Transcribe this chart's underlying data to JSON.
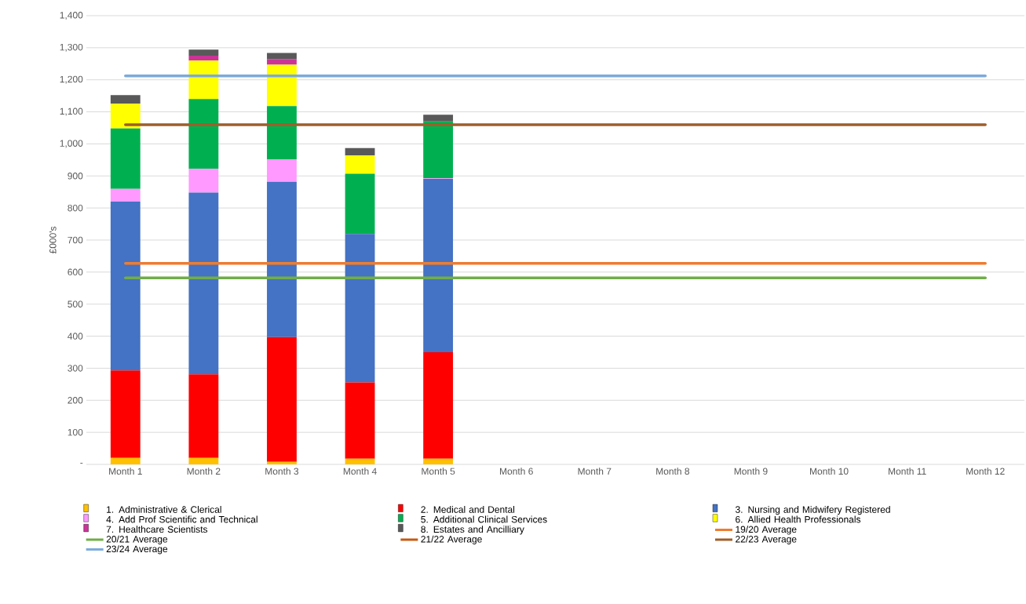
{
  "chart_data": {
    "type": "bar",
    "stacked": true,
    "ylabel": "£000's",
    "categories": [
      "Month 1",
      "Month 2",
      "Month 3",
      "Month 4",
      "Month 5",
      "Month 6",
      "Month 7",
      "Month 8",
      "Month 9",
      "Month 10",
      "Month 11",
      "Month 12"
    ],
    "ylim": [
      0,
      1400
    ],
    "yticks": [
      {
        "value": 0,
        "label": "-"
      },
      {
        "value": 100,
        "label": "100"
      },
      {
        "value": 200,
        "label": "200"
      },
      {
        "value": 300,
        "label": "300"
      },
      {
        "value": 400,
        "label": "400"
      },
      {
        "value": 500,
        "label": "500"
      },
      {
        "value": 600,
        "label": "600"
      },
      {
        "value": 700,
        "label": "700"
      },
      {
        "value": 800,
        "label": "800"
      },
      {
        "value": 900,
        "label": "900"
      },
      {
        "value": 1000,
        "label": "1,000"
      },
      {
        "value": 1100,
        "label": "1,100"
      },
      {
        "value": 1200,
        "label": "1,200"
      },
      {
        "value": 1300,
        "label": "1,300"
      },
      {
        "value": 1400,
        "label": "1,400"
      }
    ],
    "grid": "y",
    "legend": "bottom",
    "series": [
      {
        "name": "1. Administrative & Clerical",
        "color": "#ffc000",
        "values": [
          20,
          20,
          8,
          18,
          18,
          null,
          null,
          null,
          null,
          null,
          null,
          null
        ]
      },
      {
        "name": "2. Medical and Dental",
        "color": "#ff0000",
        "values": [
          273,
          261,
          389,
          238,
          332,
          null,
          null,
          null,
          null,
          null,
          null,
          null
        ]
      },
      {
        "name": "3. Nursing and Midwifery Registered",
        "color": "#4472c4",
        "values": [
          527,
          567,
          485,
          463,
          541,
          null,
          null,
          null,
          null,
          null,
          null,
          null
        ]
      },
      {
        "name": "4. Add Prof Scientific and Technical",
        "color": "#ff99ff",
        "values": [
          40,
          74,
          70,
          0,
          2,
          null,
          null,
          null,
          null,
          null,
          null,
          null
        ]
      },
      {
        "name": "5. Additional Clinical Services",
        "color": "#00b050",
        "values": [
          188,
          218,
          166,
          188,
          177,
          null,
          null,
          null,
          null,
          null,
          null,
          null
        ]
      },
      {
        "name": "6. Allied Health Professionals",
        "color": "#ffff00",
        "values": [
          77,
          120,
          129,
          57,
          0,
          null,
          null,
          null,
          null,
          null,
          null,
          null
        ]
      },
      {
        "name": "7. Healthcare Scientists",
        "color": "#cc3399",
        "values": [
          0,
          15,
          18,
          0,
          0,
          null,
          null,
          null,
          null,
          null,
          null,
          null
        ]
      },
      {
        "name": "8. Estates and Ancilliary",
        "color": "#595959",
        "values": [
          27,
          19,
          19,
          23,
          21,
          null,
          null,
          null,
          null,
          null,
          null,
          null
        ]
      },
      {
        "name": "19/20 Average",
        "type": "line",
        "color": "#ed7d31",
        "values": [
          627,
          627,
          627,
          627,
          627,
          627,
          627,
          627,
          627,
          627,
          627,
          627
        ]
      },
      {
        "name": "20/21 Average",
        "type": "line",
        "color": "#70ad47",
        "values": [
          582,
          582,
          582,
          582,
          582,
          582,
          582,
          582,
          582,
          582,
          582,
          582
        ]
      },
      {
        "name": "21/22 Average",
        "type": "line",
        "color": "#c55a11",
        "values": [
          null,
          null,
          null,
          null,
          null,
          null,
          null,
          null,
          null,
          null,
          null,
          null
        ]
      },
      {
        "name": "22/23 Average",
        "type": "line",
        "color": "#9e5e2b",
        "values": [
          1060,
          1060,
          1060,
          1060,
          1060,
          1060,
          1060,
          1060,
          1060,
          1060,
          1060,
          1060
        ]
      },
      {
        "name": "23/24 Average",
        "type": "line",
        "color": "#7caadc",
        "values": [
          1212,
          1212,
          1212,
          1212,
          1212,
          1212,
          1212,
          1212,
          1212,
          1212,
          1212,
          1212
        ]
      }
    ]
  }
}
